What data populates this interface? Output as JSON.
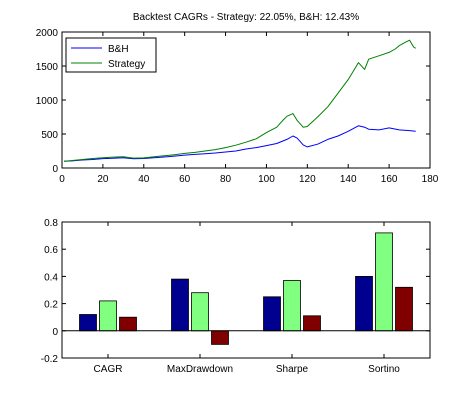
{
  "chart_data": [
    {
      "type": "line",
      "title": "Backtest CAGRs - Strategy: 22.05%, B&H: 12.43%",
      "xlabel": "",
      "ylabel": "",
      "xlim": [
        0,
        180
      ],
      "ylim": [
        0,
        2000
      ],
      "xticks": [
        0,
        20,
        40,
        60,
        80,
        100,
        120,
        140,
        160,
        180
      ],
      "yticks": [
        0,
        500,
        1000,
        1500,
        2000
      ],
      "grid": false,
      "legend_position": "top-left",
      "series": [
        {
          "name": "B&H",
          "color": "#0000ff",
          "x": [
            1,
            5,
            10,
            15,
            20,
            25,
            30,
            35,
            40,
            45,
            50,
            55,
            60,
            65,
            70,
            75,
            80,
            85,
            90,
            95,
            100,
            105,
            110,
            113,
            115,
            118,
            120,
            125,
            130,
            135,
            140,
            145,
            148,
            150,
            155,
            160,
            165,
            170,
            173
          ],
          "y": [
            100,
            105,
            118,
            125,
            138,
            142,
            150,
            135,
            140,
            150,
            162,
            175,
            190,
            200,
            210,
            220,
            235,
            250,
            280,
            300,
            330,
            360,
            420,
            470,
            440,
            340,
            310,
            350,
            420,
            470,
            540,
            620,
            600,
            570,
            560,
            590,
            560,
            550,
            540
          ]
        },
        {
          "name": "Strategy",
          "color": "#008000",
          "x": [
            1,
            5,
            10,
            15,
            20,
            25,
            30,
            35,
            40,
            45,
            50,
            55,
            60,
            65,
            70,
            75,
            80,
            85,
            90,
            95,
            100,
            105,
            108,
            110,
            113,
            115,
            118,
            120,
            125,
            130,
            135,
            140,
            143,
            145,
            148,
            150,
            155,
            160,
            163,
            165,
            168,
            170,
            172,
            173
          ],
          "y": [
            100,
            110,
            125,
            140,
            150,
            160,
            165,
            145,
            148,
            165,
            180,
            195,
            215,
            230,
            250,
            270,
            300,
            335,
            380,
            430,
            520,
            600,
            700,
            760,
            800,
            700,
            600,
            610,
            750,
            900,
            1100,
            1300,
            1450,
            1550,
            1450,
            1600,
            1650,
            1700,
            1750,
            1800,
            1850,
            1880,
            1780,
            1760
          ]
        }
      ]
    },
    {
      "type": "bar",
      "title": "",
      "xlabel": "",
      "ylabel": "",
      "ylim": [
        -0.2,
        0.8
      ],
      "yticks": [
        -0.2,
        0,
        0.2,
        0.4,
        0.6,
        0.8
      ],
      "ytick_labels": [
        "-0.2",
        "0",
        "0.2",
        "0.4",
        "0.6",
        "0.8"
      ],
      "grid": false,
      "categories": [
        "CAGR",
        "MaxDrawdown",
        "Sharpe",
        "Sortino"
      ],
      "series": [
        {
          "color": "#00008f",
          "values": [
            0.12,
            0.38,
            0.25,
            0.4
          ]
        },
        {
          "color": "#80ff80",
          "values": [
            0.22,
            0.28,
            0.37,
            0.72
          ]
        },
        {
          "color": "#800000",
          "values": [
            0.1,
            -0.1,
            0.11,
            0.32
          ]
        }
      ]
    }
  ]
}
